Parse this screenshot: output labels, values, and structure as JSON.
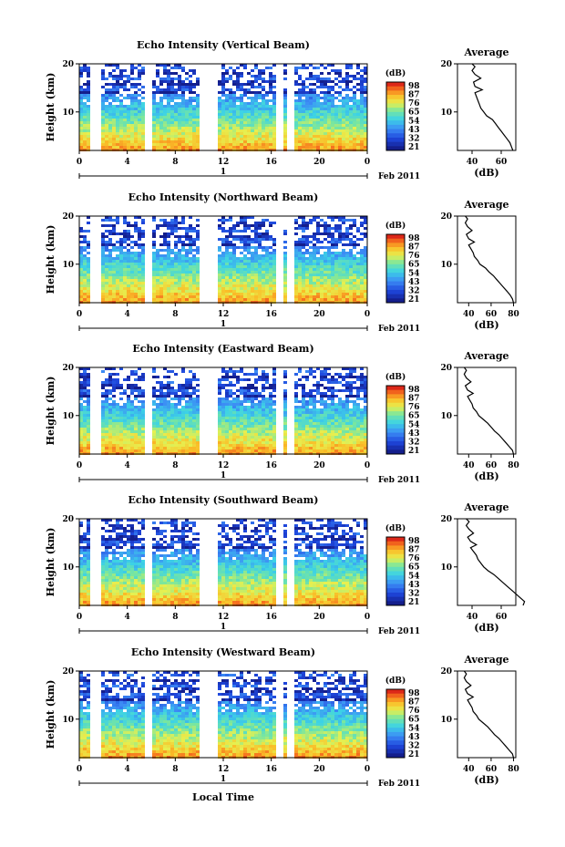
{
  "chart_data": {
    "type": "heatmap",
    "panels": [
      {
        "title": "Echo Intensity (Vertical Beam)",
        "avg_profile": [
          [
            68,
            2.0
          ],
          [
            67,
            2.8
          ],
          [
            66,
            3.6
          ],
          [
            64,
            4.4
          ],
          [
            62,
            5.2
          ],
          [
            60,
            6.0
          ],
          [
            58,
            6.8
          ],
          [
            56,
            7.6
          ],
          [
            54,
            8.4
          ],
          [
            50,
            9.2
          ],
          [
            48,
            10.0
          ],
          [
            46,
            10.8
          ],
          [
            45,
            11.6
          ],
          [
            44,
            12.4
          ],
          [
            43,
            13.2
          ],
          [
            42,
            14.0
          ],
          [
            47,
            14.6
          ],
          [
            42,
            15.3
          ],
          [
            41,
            16.2
          ],
          [
            46,
            17.0
          ],
          [
            42,
            17.8
          ],
          [
            40,
            18.6
          ],
          [
            42,
            19.4
          ],
          [
            40,
            20.0
          ]
        ]
      },
      {
        "title": "Echo Intensity (Northward Beam)",
        "avg_profile": [
          [
            80,
            2.0
          ],
          [
            79,
            2.8
          ],
          [
            77,
            3.6
          ],
          [
            74,
            4.4
          ],
          [
            71,
            5.2
          ],
          [
            68,
            6.0
          ],
          [
            65,
            6.8
          ],
          [
            62,
            7.6
          ],
          [
            58,
            8.4
          ],
          [
            55,
            9.2
          ],
          [
            50,
            10.0
          ],
          [
            48,
            10.8
          ],
          [
            45,
            11.6
          ],
          [
            44,
            12.4
          ],
          [
            42,
            13.2
          ],
          [
            40,
            14.0
          ],
          [
            45,
            14.6
          ],
          [
            40,
            15.3
          ],
          [
            38,
            16.2
          ],
          [
            43,
            17.0
          ],
          [
            39,
            17.8
          ],
          [
            37,
            18.6
          ],
          [
            39,
            19.4
          ],
          [
            37,
            20.0
          ]
        ]
      },
      {
        "title": "Echo Intensity (Eastward Beam)",
        "avg_profile": [
          [
            80,
            2.0
          ],
          [
            79,
            2.8
          ],
          [
            76,
            3.6
          ],
          [
            73,
            4.4
          ],
          [
            70,
            5.2
          ],
          [
            67,
            6.0
          ],
          [
            63,
            6.8
          ],
          [
            60,
            7.6
          ],
          [
            57,
            8.4
          ],
          [
            53,
            9.2
          ],
          [
            49,
            10.0
          ],
          [
            47,
            10.8
          ],
          [
            44,
            11.6
          ],
          [
            43,
            12.4
          ],
          [
            41,
            13.2
          ],
          [
            39,
            14.0
          ],
          [
            44,
            14.6
          ],
          [
            39,
            15.3
          ],
          [
            37,
            16.2
          ],
          [
            42,
            17.0
          ],
          [
            38,
            17.8
          ],
          [
            36,
            18.6
          ],
          [
            38,
            19.4
          ],
          [
            36,
            20.0
          ]
        ]
      },
      {
        "title": "Echo Intensity (Southward Beam)",
        "avg_profile": [
          [
            75,
            2.0
          ],
          [
            76,
            2.8
          ],
          [
            73,
            3.6
          ],
          [
            70,
            4.4
          ],
          [
            67,
            5.2
          ],
          [
            64,
            6.0
          ],
          [
            61,
            6.8
          ],
          [
            58,
            7.6
          ],
          [
            55,
            8.4
          ],
          [
            51,
            9.2
          ],
          [
            48,
            10.0
          ],
          [
            46,
            10.8
          ],
          [
            44,
            11.6
          ],
          [
            43,
            12.4
          ],
          [
            41,
            13.2
          ],
          [
            39,
            14.0
          ],
          [
            43,
            14.6
          ],
          [
            39,
            15.3
          ],
          [
            37,
            16.2
          ],
          [
            41,
            17.0
          ],
          [
            38,
            17.8
          ],
          [
            36,
            18.6
          ],
          [
            38,
            19.4
          ],
          [
            36,
            20.0
          ]
        ]
      },
      {
        "title": "Echo Intensity (Westward Beam)",
        "avg_profile": [
          [
            80,
            2.0
          ],
          [
            79,
            2.8
          ],
          [
            76,
            3.6
          ],
          [
            73,
            4.4
          ],
          [
            70,
            5.2
          ],
          [
            67,
            6.0
          ],
          [
            63,
            6.8
          ],
          [
            60,
            7.6
          ],
          [
            57,
            8.4
          ],
          [
            53,
            9.2
          ],
          [
            49,
            10.0
          ],
          [
            47,
            10.8
          ],
          [
            44,
            11.6
          ],
          [
            43,
            12.4
          ],
          [
            41,
            13.2
          ],
          [
            39,
            14.0
          ],
          [
            44,
            14.6
          ],
          [
            39,
            15.3
          ],
          [
            37,
            16.2
          ],
          [
            42,
            17.0
          ],
          [
            38,
            17.8
          ],
          [
            36,
            18.6
          ],
          [
            38,
            19.4
          ],
          [
            36,
            20.0
          ]
        ]
      }
    ],
    "ylabel": "Height (km)",
    "y_ticks": [
      "10",
      "20"
    ],
    "x_ticks": [
      "0",
      "4",
      "8",
      "12",
      "16",
      "20",
      "0"
    ],
    "date_tick": "1",
    "date_label": "Feb 2011",
    "xlabel": "Local Time",
    "colorbar": {
      "unit": "(dB)",
      "labels": [
        [
          "98",
          "87",
          "76",
          "65",
          "54",
          "43",
          "32",
          "21"
        ],
        [
          "98",
          "87",
          "76",
          "65",
          "54",
          "43",
          "32",
          "21"
        ],
        [
          "98",
          "87",
          "76",
          "65",
          "54",
          "43",
          "32",
          "21"
        ],
        [
          "98",
          "87",
          "76",
          "65",
          "54",
          "43",
          "32",
          "21"
        ],
        [
          "98",
          "87",
          "76",
          "65",
          "54",
          "43",
          "32",
          "21"
        ]
      ]
    },
    "average": {
      "title": "Average",
      "xlabel": "(dB)",
      "x_ticks": [
        [
          "40",
          "60"
        ],
        [
          "40",
          "60",
          "80"
        ],
        [
          "40",
          "60",
          "80"
        ],
        [
          "40",
          "60"
        ],
        [
          "40",
          "60",
          "80"
        ]
      ],
      "y_ticks": [
        "10",
        "20"
      ]
    }
  }
}
